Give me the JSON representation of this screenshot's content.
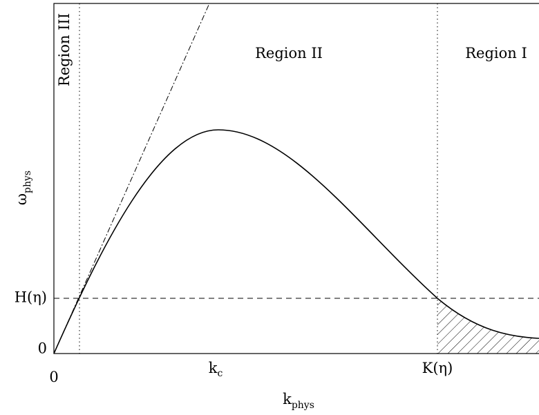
{
  "regions": {
    "left": "Region III",
    "middle": "Region II",
    "right": "Region I"
  },
  "y_axis": {
    "symbol": "ω",
    "subscript": "phys",
    "marks": [
      "H(η)",
      "0"
    ]
  },
  "x_axis": {
    "symbol": "k",
    "subscript": "phys",
    "origin": "0",
    "marks": [
      {
        "symbol": "k",
        "subscript": "c"
      },
      "K(η)"
    ]
  }
}
